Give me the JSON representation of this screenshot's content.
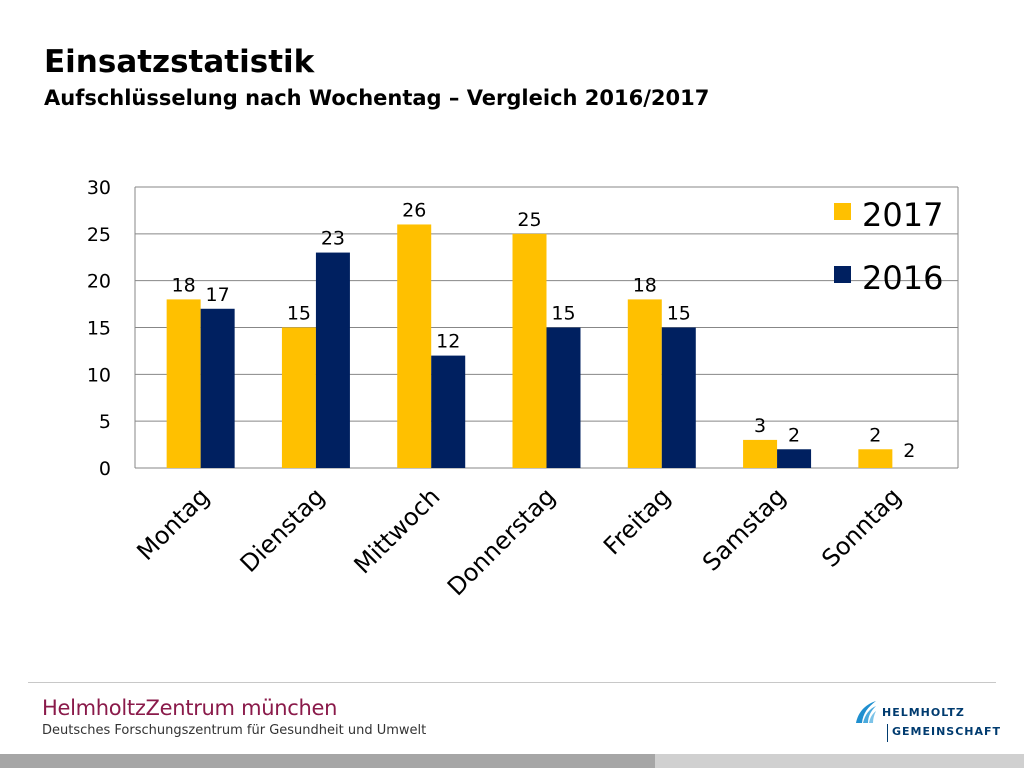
{
  "slide": {
    "title": "Einsatzstatistik",
    "subtitle": "Aufschlüsselung nach Wochentag – Vergleich 2016/2017"
  },
  "chart_data": {
    "type": "bar",
    "title": "",
    "xlabel": "",
    "ylabel": "",
    "ylim": [
      0,
      30
    ],
    "yticks": [
      0,
      5,
      10,
      15,
      20,
      25,
      30
    ],
    "grid": true,
    "legend": "right",
    "categories": [
      "Montag",
      "Dienstag",
      "Mittwoch",
      "Donnerstag",
      "Freitag",
      "Samstag",
      "Sonntag"
    ],
    "series": [
      {
        "name": "2017",
        "color": "#ffc000",
        "values": [
          18,
          15,
          26,
          25,
          18,
          3,
          2
        ]
      },
      {
        "name": "2016",
        "color": "#002060",
        "values": [
          17,
          23,
          12,
          15,
          15,
          2,
          null
        ]
      }
    ],
    "orphan_label": {
      "category": "Sonntag",
      "text": "2"
    }
  },
  "footer": {
    "org_name": "HelmholtzZentrum münchen",
    "org_subtitle": "Deutsches Forschungszentrum für Gesundheit und Umwelt",
    "partner_line1": "HELMHOLTZ",
    "partner_line2": "GEMEINSCHAFT",
    "partner_icon": "helmholtz-logo-icon",
    "colors": {
      "org": "#8a1a4a",
      "partner": "#003b6f"
    }
  }
}
